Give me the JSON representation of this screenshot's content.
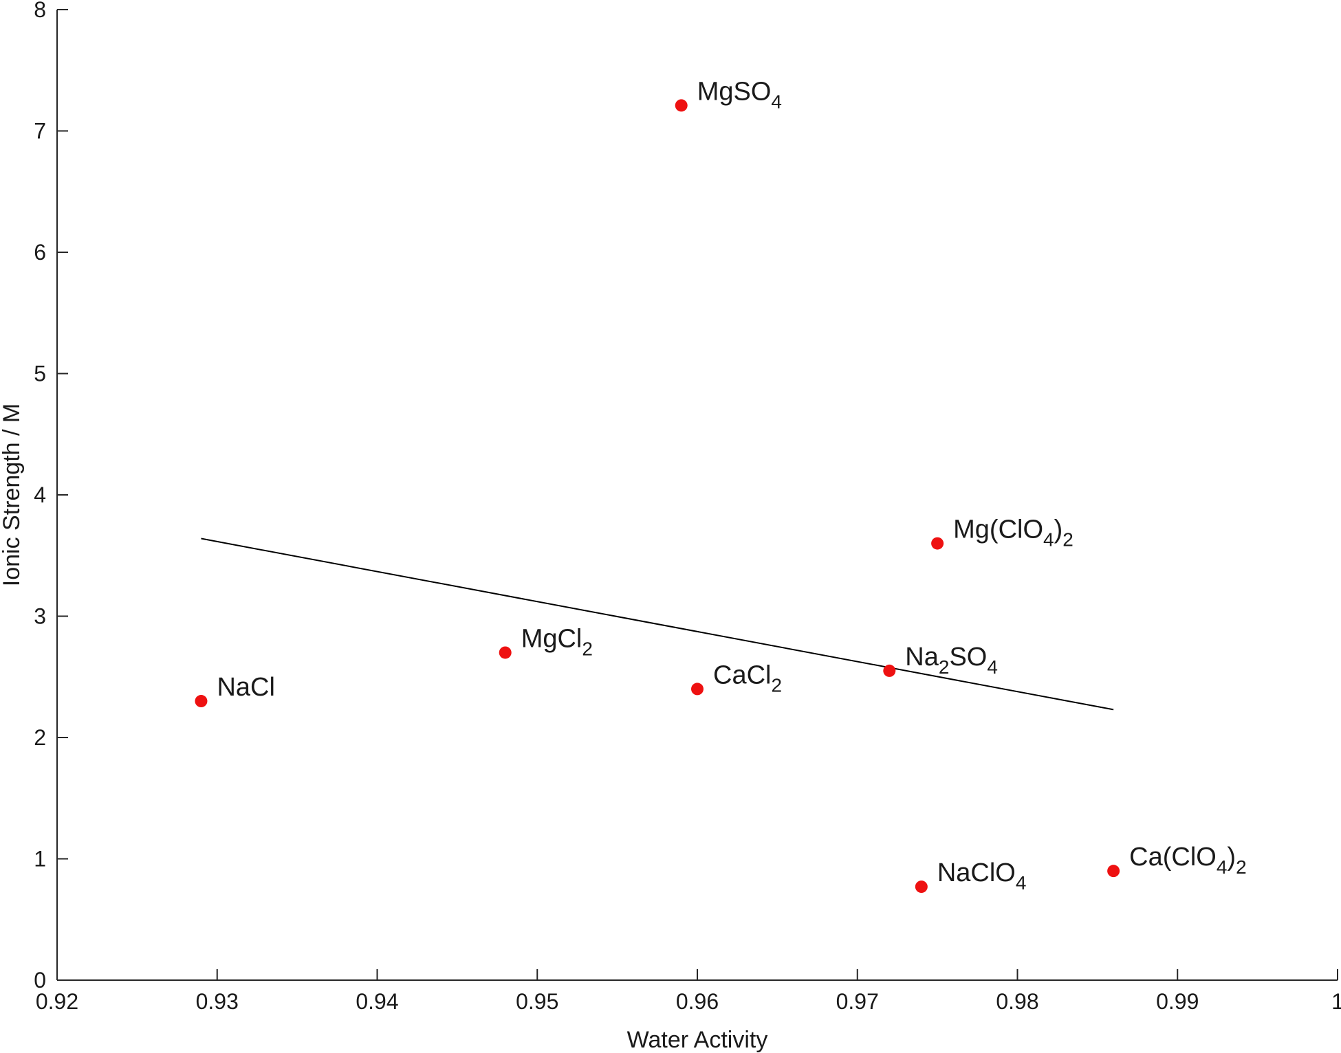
{
  "chart_data": {
    "type": "scatter",
    "title": "",
    "xlabel": "Water Activity",
    "ylabel": "Ionic Strength / M",
    "xlim": [
      0.92,
      1
    ],
    "ylim": [
      0,
      8
    ],
    "xticks": [
      0.92,
      0.93,
      0.94,
      0.95,
      0.96,
      0.97,
      0.98,
      0.99,
      1
    ],
    "xtick_labels": [
      "0.92",
      "0.93",
      "0.94",
      "0.95",
      "0.96",
      "0.97",
      "0.98",
      "0.99",
      "1"
    ],
    "yticks": [
      0,
      1,
      2,
      3,
      4,
      5,
      6,
      7,
      8
    ],
    "ytick_labels": [
      "0",
      "1",
      "2",
      "3",
      "4",
      "5",
      "6",
      "7",
      "8"
    ],
    "grid": false,
    "marker_color": "#ee1111",
    "line_color": "#000000",
    "points": [
      {
        "name": "MgSO4",
        "x": 0.959,
        "y": 7.21,
        "label_parts": [
          [
            "MgSO",
            ""
          ],
          [
            "4",
            "sub"
          ]
        ]
      },
      {
        "name": "Mg(ClO4)2",
        "x": 0.975,
        "y": 3.6,
        "label_parts": [
          [
            "Mg(ClO",
            ""
          ],
          [
            "4",
            "sub"
          ],
          [
            ")",
            ""
          ],
          [
            "2",
            "sub"
          ]
        ]
      },
      {
        "name": "MgCl2",
        "x": 0.948,
        "y": 2.7,
        "label_parts": [
          [
            "MgCl",
            ""
          ],
          [
            "2",
            "sub"
          ]
        ]
      },
      {
        "name": "Na2SO4",
        "x": 0.972,
        "y": 2.55,
        "label_parts": [
          [
            "Na",
            ""
          ],
          [
            "2",
            "sub"
          ],
          [
            "SO",
            ""
          ],
          [
            "4",
            "sub"
          ]
        ]
      },
      {
        "name": "CaCl2",
        "x": 0.96,
        "y": 2.4,
        "label_parts": [
          [
            "CaCl",
            ""
          ],
          [
            "2",
            "sub"
          ]
        ]
      },
      {
        "name": "NaCl",
        "x": 0.929,
        "y": 2.3,
        "label_parts": [
          [
            "NaCl",
            ""
          ]
        ]
      },
      {
        "name": "Ca(ClO4)2",
        "x": 0.986,
        "y": 0.9,
        "label_parts": [
          [
            "Ca(ClO",
            ""
          ],
          [
            "4",
            "sub"
          ],
          [
            ")",
            ""
          ],
          [
            "2",
            "sub"
          ]
        ]
      },
      {
        "name": "NaClO4",
        "x": 0.974,
        "y": 0.77,
        "label_parts": [
          [
            "NaClO",
            ""
          ],
          [
            "4",
            "sub"
          ]
        ]
      }
    ],
    "fit_line": {
      "x": [
        0.929,
        0.986
      ],
      "y": [
        3.64,
        2.23
      ]
    }
  }
}
